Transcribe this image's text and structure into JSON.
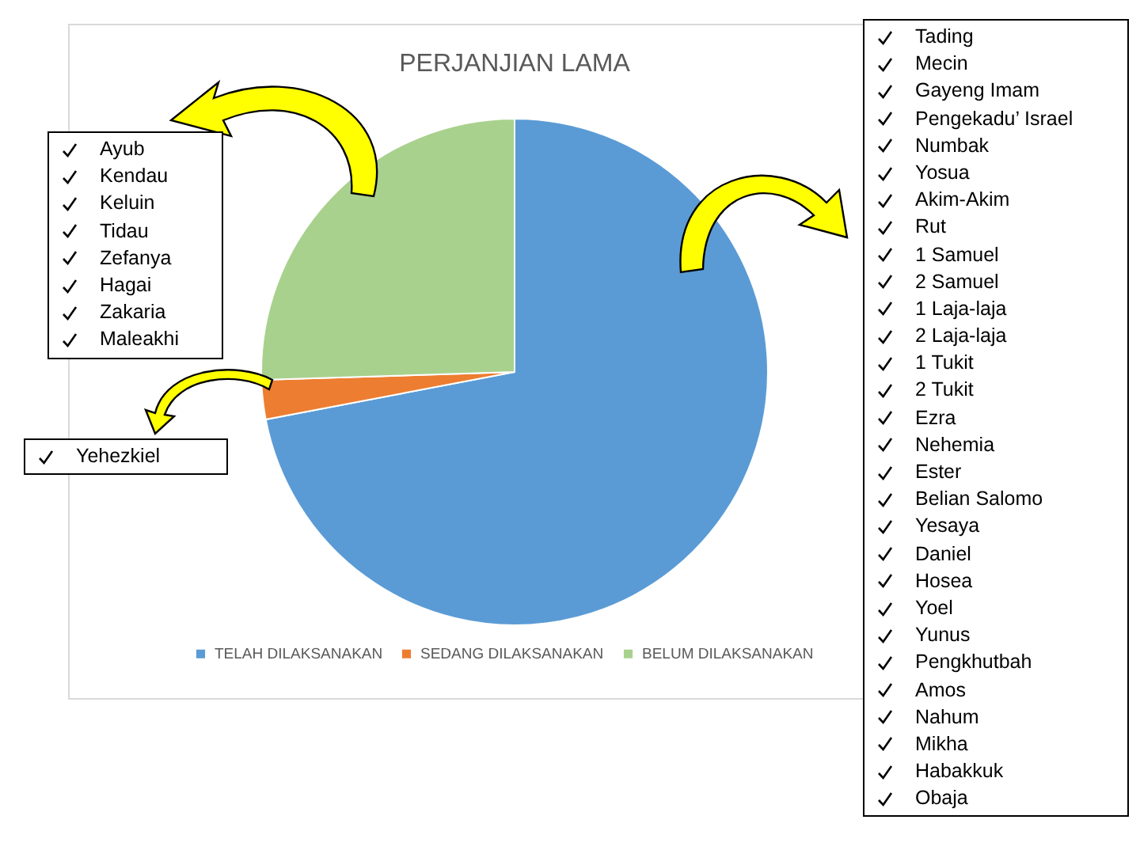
{
  "chart_data": {
    "type": "pie",
    "title": "PERJANJIAN LAMA",
    "categories": [
      "TELAH DILAKSANAKAN",
      "SEDANG DILAKSANAKAN",
      "BELUM DILAKSANAKAN"
    ],
    "values": [
      72,
      2.5,
      25.5
    ],
    "colors": [
      "#5b9bd5",
      "#ed7d31",
      "#a9d18e"
    ],
    "legend": "bottom",
    "annotations": [
      "Ayub\nKendau\nKeluin\nTidau\nZefanya\nHagai\nZakaria\nMaleakhi",
      "Yehezkiel",
      "Tading\nMecin\nGayeng Imam\nPengekadu’ Israel\nNumbak\nYosua\nAkim-Akim\nRut\n1 Samuel\n2 Samuel\n1 Laja-laja\n2 Laja-laja\n1 Tukit\n2 Tukit\nEzra\nNehemia\nEster\nBelian Salomo\nYesaya\nDaniel\nHosea\nYoel\nYunus\nPengkhutbah\nAmos\nNahum\nMikha\nHabakkuk\nObaja"
    ]
  }
}
